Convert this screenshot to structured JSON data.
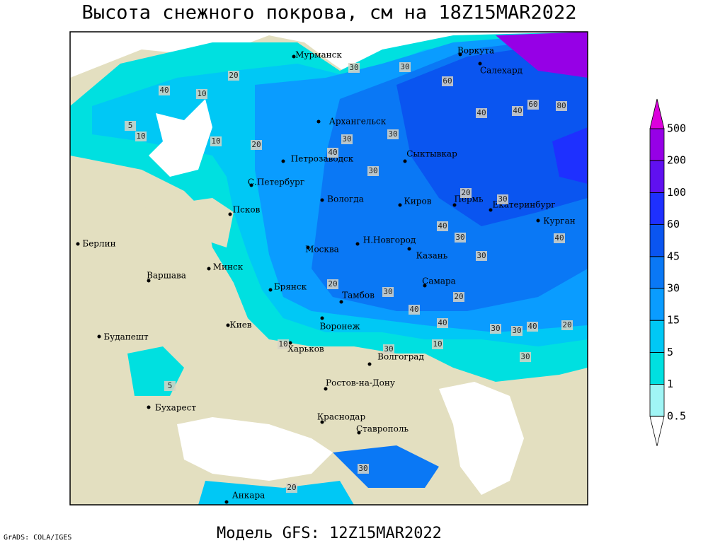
{
  "title": "Высота снежного покрова, см на 18Z15MAR2022",
  "subtitle": "Модель GFS: 12Z15MAR2022",
  "credit": "GrADS: COLA/IGES",
  "colorbar": {
    "levels": [
      0.5,
      1,
      5,
      15,
      30,
      45,
      60,
      100,
      200,
      500
    ],
    "colors": [
      "#ffffff",
      "#a0f5f5",
      "#00e0e0",
      "#00c8f5",
      "#0a9cff",
      "#0a78f5",
      "#0a55f0",
      "#1e30ff",
      "#6010f0",
      "#9600e6",
      "#dc00dc"
    ]
  },
  "cities": [
    "Мурманск",
    "Воркута",
    "Салехард",
    "Архангельск",
    "Сыктывкар",
    "Петрозаводск",
    "С.Петербург",
    "Вологда",
    "Киров",
    "Пермь",
    "Екатеринбург",
    "Курган",
    "Псков",
    "Н.Новгород",
    "Москва",
    "Казань",
    "Минск",
    "Берлин",
    "Варшава",
    "Брянск",
    "Тамбов",
    "Самара",
    "Воронеж",
    "Киев",
    "Будапешт",
    "Харьков",
    "Волгоград",
    "Ростов-на-Дону",
    "Бухарест",
    "Краснодар",
    "Ставрополь",
    "Анкара"
  ],
  "contour_labels": [
    40,
    20,
    10,
    30,
    30,
    60,
    40,
    60,
    80,
    40,
    30,
    20,
    10,
    30,
    40,
    30,
    20,
    30,
    40,
    30,
    20,
    30,
    40,
    30,
    40,
    30,
    10,
    30,
    5,
    5,
    10,
    20,
    40,
    30,
    10,
    30,
    20,
    30,
    40,
    20
  ]
}
